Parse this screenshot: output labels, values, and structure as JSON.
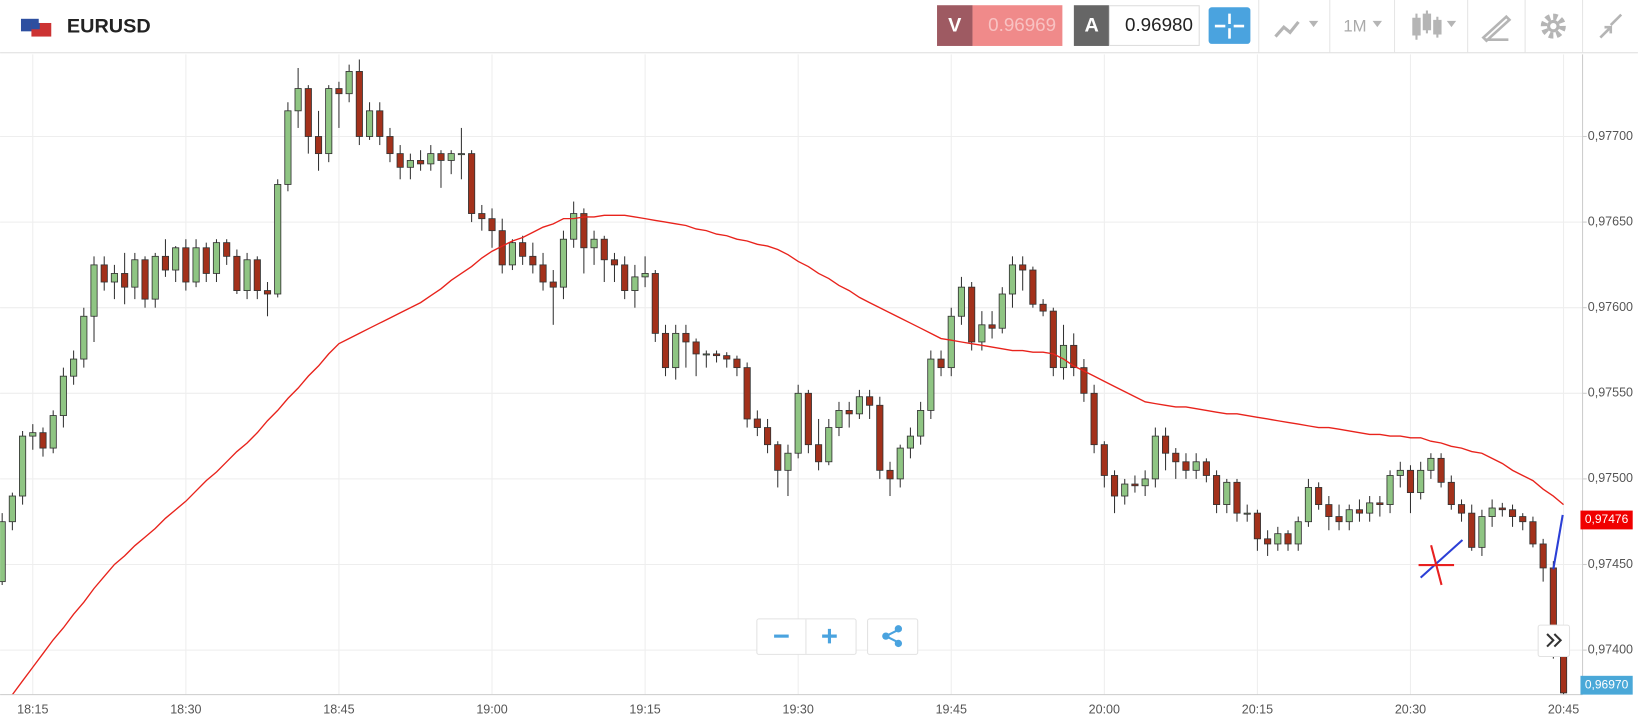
{
  "header": {
    "symbol": "EURUSD",
    "bid_label": "V",
    "bid": "0.96969",
    "ask_label": "A",
    "ask": "0.96980",
    "timeframe": "1M"
  },
  "chart_data": {
    "type": "candlestick",
    "categories": [
      null,
      null,
      null,
      "18:15",
      null,
      null,
      null,
      null,
      null,
      null,
      null,
      null,
      null,
      null,
      null,
      null,
      null,
      null,
      "18:30",
      null,
      null,
      null,
      null,
      null,
      null,
      null,
      null,
      null,
      null,
      null,
      null,
      null,
      null,
      "18:45",
      null,
      null,
      null,
      null,
      null,
      null,
      null,
      null,
      null,
      null,
      null,
      null,
      null,
      null,
      "19:00",
      null,
      null,
      null,
      null,
      null,
      null,
      null,
      null,
      null,
      null,
      null,
      null,
      null,
      null,
      "19:15",
      null,
      null,
      null,
      null,
      null,
      null,
      null,
      null,
      null,
      null,
      null,
      null,
      null,
      null,
      "19:30",
      null,
      null,
      null,
      null,
      null,
      null,
      null,
      null,
      null,
      null,
      null,
      null,
      null,
      null,
      "19:45",
      null,
      null,
      null,
      null,
      null,
      null,
      null,
      null,
      null,
      null,
      null,
      null,
      null,
      null,
      "20:00",
      null,
      null,
      null,
      null,
      null,
      null,
      null,
      null,
      null,
      null,
      null,
      null,
      null,
      null,
      "20:15",
      null,
      null,
      null,
      null,
      null,
      null,
      null,
      null,
      null,
      null,
      null,
      null,
      null,
      null,
      "20:30",
      null,
      null,
      null,
      null,
      null,
      null,
      null,
      null,
      null,
      null,
      null,
      null,
      null,
      null,
      "20:45"
    ],
    "open": [
      0.9744,
      0.97475,
      0.9749,
      0.97525,
      0.97527,
      0.97518,
      0.97537,
      0.9756,
      0.9757,
      0.97595,
      0.97625,
      0.97615,
      0.9762,
      0.97612,
      0.97628,
      0.97605,
      0.9763,
      0.97622,
      0.97635,
      0.97615,
      0.97635,
      0.9762,
      0.97638,
      0.9763,
      0.9761,
      0.97628,
      0.9761,
      0.97608,
      0.97672,
      0.97715,
      0.97728,
      0.977,
      0.9769,
      0.97728,
      0.97725,
      0.97738,
      0.977,
      0.97715,
      0.977,
      0.9769,
      0.97682,
      0.97686,
      0.97684,
      0.9769,
      0.97686,
      0.9769,
      0.9769,
      0.97655,
      0.97652,
      0.97645,
      0.97625,
      0.97638,
      0.9763,
      0.97625,
      0.97615,
      0.97612,
      0.9764,
      0.97655,
      0.97635,
      0.9764,
      0.97628,
      0.97625,
      0.9761,
      0.97618,
      0.9762,
      0.97585,
      0.97565,
      0.97585,
      0.9758,
      0.97573,
      0.97573,
      0.97572,
      0.9757,
      0.97565,
      0.97535,
      0.9753,
      0.9752,
      0.97505,
      0.97515,
      0.9755,
      0.9752,
      0.9751,
      0.9753,
      0.9754,
      0.97538,
      0.97548,
      0.97543,
      0.97505,
      0.975,
      0.97518,
      0.97525,
      0.9754,
      0.9757,
      0.97565,
      0.97595,
      0.97612,
      0.9758,
      0.9759,
      0.97588,
      0.97608,
      0.97625,
      0.97622,
      0.97602,
      0.97598,
      0.97565,
      0.97578,
      0.97565,
      0.9755,
      0.9752,
      0.97502,
      0.9749,
      0.97497,
      0.97496,
      0.975,
      0.97525,
      0.97515,
      0.9751,
      0.97505,
      0.9751,
      0.97502,
      0.97485,
      0.97498,
      0.9748,
      0.9748,
      0.97465,
      0.97462,
      0.97468,
      0.97462,
      0.97475,
      0.97495,
      0.97485,
      0.97478,
      0.97475,
      0.97482,
      0.9748,
      0.97486,
      0.97485,
      0.97502,
      0.97505,
      0.97492,
      0.97505,
      0.97512,
      0.97498,
      0.97485,
      0.9748,
      0.9746,
      0.97478,
      0.97483,
      0.97482,
      0.97478,
      0.97475,
      0.97462,
      0.97448,
      0.974
    ],
    "high": [
      0.9748,
      0.97492,
      0.97528,
      0.97532,
      0.9753,
      0.9754,
      0.97565,
      0.97575,
      0.976,
      0.9763,
      0.9763,
      0.97625,
      0.97632,
      0.97632,
      0.9763,
      0.97632,
      0.9764,
      0.97636,
      0.9764,
      0.9764,
      0.97638,
      0.9764,
      0.9764,
      0.97634,
      0.97632,
      0.9763,
      0.97615,
      0.97675,
      0.9772,
      0.9774,
      0.9773,
      0.97715,
      0.9773,
      0.97732,
      0.97742,
      0.97745,
      0.9772,
      0.9772,
      0.97705,
      0.97695,
      0.9769,
      0.97692,
      0.97695,
      0.97692,
      0.97692,
      0.97705,
      0.97692,
      0.9766,
      0.97658,
      0.97652,
      0.9764,
      0.97642,
      0.97638,
      0.97632,
      0.97622,
      0.97645,
      0.97662,
      0.97658,
      0.97645,
      0.97642,
      0.97632,
      0.9763,
      0.97625,
      0.9763,
      0.97622,
      0.9759,
      0.9759,
      0.9759,
      0.97582,
      0.97575,
      0.97575,
      0.97574,
      0.97572,
      0.97568,
      0.9754,
      0.97535,
      0.97522,
      0.9752,
      0.97555,
      0.97552,
      0.97535,
      0.97535,
      0.97545,
      0.97545,
      0.97552,
      0.97552,
      0.97548,
      0.9751,
      0.9752,
      0.9753,
      0.97545,
      0.97575,
      0.97575,
      0.976,
      0.97618,
      0.97615,
      0.97598,
      0.97598,
      0.97612,
      0.9763,
      0.9763,
      0.97624,
      0.97605,
      0.976,
      0.9759,
      0.97585,
      0.9757,
      0.97555,
      0.97522,
      0.97505,
      0.975,
      0.97502,
      0.97505,
      0.9753,
      0.9753,
      0.97518,
      0.97515,
      0.97515,
      0.97512,
      0.97505,
      0.975,
      0.975,
      0.97485,
      0.97482,
      0.9747,
      0.97472,
      0.9747,
      0.97478,
      0.975,
      0.97498,
      0.9749,
      0.97485,
      0.97485,
      0.97488,
      0.9749,
      0.9749,
      0.97505,
      0.9751,
      0.97508,
      0.9751,
      0.97515,
      0.97515,
      0.97502,
      0.97488,
      0.97485,
      0.97482,
      0.97488,
      0.97486,
      0.97485,
      0.9748,
      0.97478,
      0.97465,
      0.97452,
      0.97405
    ],
    "low": [
      0.97438,
      0.9747,
      0.97485,
      0.97517,
      0.97513,
      0.97515,
      0.9753,
      0.97555,
      0.97565,
      0.9758,
      0.9761,
      0.97605,
      0.97602,
      0.97605,
      0.976,
      0.976,
      0.97618,
      0.97615,
      0.9761,
      0.97612,
      0.97615,
      0.97615,
      0.97625,
      0.97608,
      0.97605,
      0.97605,
      0.97595,
      0.97606,
      0.97668,
      0.97705,
      0.9769,
      0.9768,
      0.97685,
      0.97705,
      0.9772,
      0.97695,
      0.97698,
      0.97695,
      0.97685,
      0.97675,
      0.97675,
      0.9768,
      0.9768,
      0.9767,
      0.97678,
      0.97675,
      0.9765,
      0.97645,
      0.97635,
      0.9762,
      0.97622,
      0.97625,
      0.9762,
      0.9761,
      0.9759,
      0.97605,
      0.97635,
      0.9762,
      0.97625,
      0.97615,
      0.97615,
      0.97605,
      0.976,
      0.97612,
      0.9758,
      0.9756,
      0.97558,
      0.97565,
      0.9756,
      0.97565,
      0.97568,
      0.97565,
      0.9756,
      0.9753,
      0.97525,
      0.97515,
      0.97495,
      0.9749,
      0.97512,
      0.97515,
      0.97505,
      0.97508,
      0.97525,
      0.9753,
      0.97535,
      0.97535,
      0.975,
      0.9749,
      0.97495,
      0.97512,
      0.9752,
      0.97535,
      0.9756,
      0.9756,
      0.9759,
      0.97575,
      0.97575,
      0.97582,
      0.97585,
      0.976,
      0.9761,
      0.976,
      0.97595,
      0.9756,
      0.97558,
      0.9756,
      0.97545,
      0.97515,
      0.97495,
      0.9748,
      0.97485,
      0.97492,
      0.9749,
      0.97495,
      0.97505,
      0.975,
      0.975,
      0.975,
      0.97498,
      0.9748,
      0.9748,
      0.97475,
      0.97475,
      0.97458,
      0.97455,
      0.97458,
      0.97458,
      0.97458,
      0.97472,
      0.97482,
      0.9747,
      0.9747,
      0.9747,
      0.97475,
      0.97475,
      0.97478,
      0.9748,
      0.97495,
      0.9748,
      0.97488,
      0.975,
      0.97495,
      0.97482,
      0.97475,
      0.97458,
      0.97455,
      0.97472,
      0.97478,
      0.97472,
      0.9747,
      0.9746,
      0.9744,
      0.97395,
      0.9737
    ],
    "close": [
      0.97475,
      0.9749,
      0.97525,
      0.97527,
      0.97518,
      0.97537,
      0.9756,
      0.9757,
      0.97595,
      0.97625,
      0.97615,
      0.9762,
      0.97612,
      0.97628,
      0.97605,
      0.9763,
      0.97622,
      0.97635,
      0.97615,
      0.97635,
      0.9762,
      0.97638,
      0.9763,
      0.9761,
      0.97628,
      0.9761,
      0.97608,
      0.97672,
      0.97715,
      0.97728,
      0.977,
      0.9769,
      0.97728,
      0.97725,
      0.97738,
      0.977,
      0.97715,
      0.977,
      0.9769,
      0.97682,
      0.97686,
      0.97684,
      0.9769,
      0.97686,
      0.9769,
      0.9769,
      0.97655,
      0.97652,
      0.97645,
      0.97625,
      0.97638,
      0.9763,
      0.97625,
      0.97615,
      0.97612,
      0.9764,
      0.97655,
      0.97635,
      0.9764,
      0.97628,
      0.97625,
      0.9761,
      0.97618,
      0.9762,
      0.97585,
      0.97565,
      0.97585,
      0.9758,
      0.97573,
      0.97573,
      0.97572,
      0.9757,
      0.97565,
      0.97535,
      0.9753,
      0.9752,
      0.97505,
      0.97515,
      0.9755,
      0.9752,
      0.9751,
      0.9753,
      0.9754,
      0.97538,
      0.97548,
      0.97543,
      0.97505,
      0.975,
      0.97518,
      0.97525,
      0.9754,
      0.9757,
      0.97565,
      0.97595,
      0.97612,
      0.9758,
      0.9759,
      0.97588,
      0.97608,
      0.97625,
      0.97622,
      0.97602,
      0.97598,
      0.97565,
      0.97578,
      0.97565,
      0.9755,
      0.9752,
      0.97502,
      0.9749,
      0.97497,
      0.97496,
      0.975,
      0.97525,
      0.97515,
      0.9751,
      0.97505,
      0.9751,
      0.97502,
      0.97485,
      0.97498,
      0.9748,
      0.9748,
      0.97465,
      0.97462,
      0.97468,
      0.97462,
      0.97475,
      0.97495,
      0.97485,
      0.97478,
      0.97475,
      0.97482,
      0.9748,
      0.97486,
      0.97485,
      0.97502,
      0.97505,
      0.97492,
      0.97505,
      0.97512,
      0.97498,
      0.97485,
      0.9748,
      0.9746,
      0.97478,
      0.97483,
      0.97482,
      0.97478,
      0.97475,
      0.97462,
      0.97448,
      0.974,
      0.97375
    ],
    "up_color": "#8fc583",
    "down_color": "#a3311b",
    "ma": {
      "color": "#e8231c",
      "values": [
        0.9737,
        0.97374,
        0.97382,
        0.9739,
        0.97398,
        0.97406,
        0.97413,
        0.97421,
        0.97428,
        0.97436,
        0.97443,
        0.9745,
        0.97455,
        0.97461,
        0.97466,
        0.97471,
        0.97477,
        0.97482,
        0.97487,
        0.97493,
        0.97499,
        0.97504,
        0.9751,
        0.97516,
        0.97521,
        0.97527,
        0.97534,
        0.9754,
        0.97547,
        0.97553,
        0.9756,
        0.97566,
        0.97573,
        0.97579,
        0.97582,
        0.97585,
        0.97588,
        0.97591,
        0.97594,
        0.97597,
        0.976,
        0.97603,
        0.97607,
        0.97611,
        0.97616,
        0.9762,
        0.97624,
        0.97629,
        0.97633,
        0.97636,
        0.97639,
        0.97641,
        0.97644,
        0.97647,
        0.97649,
        0.97652,
        0.97652,
        0.97653,
        0.97653,
        0.97654,
        0.97654,
        0.97654,
        0.97653,
        0.97652,
        0.97651,
        0.9765,
        0.97649,
        0.97648,
        0.97646,
        0.97645,
        0.97643,
        0.97642,
        0.9764,
        0.97639,
        0.97637,
        0.97636,
        0.97634,
        0.97631,
        0.97627,
        0.97624,
        0.9762,
        0.97617,
        0.97613,
        0.9761,
        0.97606,
        0.97603,
        0.976,
        0.97597,
        0.97594,
        0.97591,
        0.97588,
        0.97585,
        0.97582,
        0.97581,
        0.9758,
        0.97579,
        0.97578,
        0.97577,
        0.97576,
        0.97575,
        0.97575,
        0.97574,
        0.97574,
        0.97573,
        0.9757,
        0.97566,
        0.97563,
        0.9756,
        0.97557,
        0.97554,
        0.97551,
        0.97548,
        0.97545,
        0.97544,
        0.97543,
        0.97542,
        0.97542,
        0.97541,
        0.9754,
        0.97539,
        0.97538,
        0.97538,
        0.97537,
        0.97536,
        0.97535,
        0.97534,
        0.97533,
        0.97532,
        0.97531,
        0.9753,
        0.9753,
        0.97529,
        0.97528,
        0.97527,
        0.97526,
        0.97526,
        0.97525,
        0.97525,
        0.97524,
        0.97524,
        0.97522,
        0.97521,
        0.97519,
        0.97518,
        0.97516,
        0.97515,
        0.97512,
        0.97509,
        0.97505,
        0.97502,
        0.97499,
        0.97494,
        0.9749,
        0.97485
      ]
    },
    "ylim": [
      0.97374,
      0.97748
    ],
    "yticks": [
      {
        "value": 0.974,
        "label": "0,97400"
      },
      {
        "value": 0.9745,
        "label": "0,97450"
      },
      {
        "value": 0.975,
        "label": "0,97500"
      },
      {
        "value": 0.9755,
        "label": "0,97550"
      },
      {
        "value": 0.976,
        "label": "0,97600"
      },
      {
        "value": 0.9765,
        "label": "0,97650"
      },
      {
        "value": 0.977,
        "label": "0,97700"
      }
    ],
    "grid": true,
    "current_price": {
      "value": 0.97476,
      "label": "0,97476",
      "color": "#f00000"
    },
    "ask_marker": {
      "value": 0.9697,
      "label": "0,96970",
      "color": "#4aa8d8"
    }
  }
}
